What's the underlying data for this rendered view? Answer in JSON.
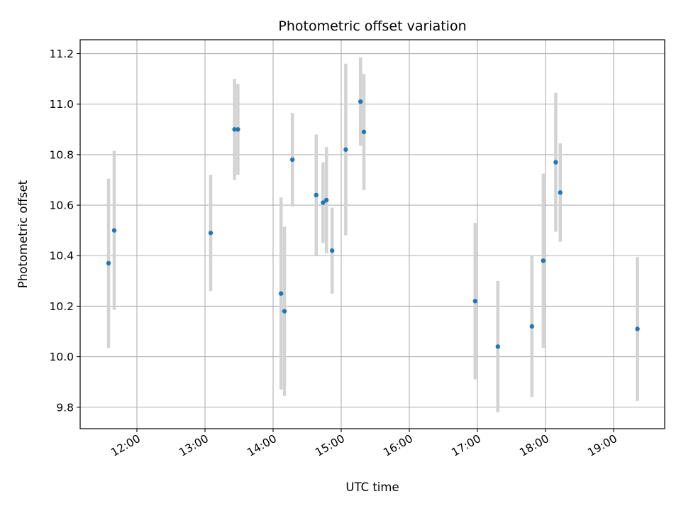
{
  "chart_data": {
    "type": "scatter",
    "title": "Photometric offset variation",
    "xlabel": "UTC time",
    "ylabel": "Photometric offset",
    "x_unit": "UTC hours",
    "xlim": [
      "11:10",
      "19:45"
    ],
    "ylim": [
      9.715,
      11.255
    ],
    "x_ticks": [
      "12:00",
      "13:00",
      "14:00",
      "15:00",
      "16:00",
      "17:00",
      "18:00",
      "19:00"
    ],
    "y_ticks": [
      "9.8",
      "10.0",
      "10.2",
      "10.4",
      "10.6",
      "10.8",
      "11.0",
      "11.2"
    ],
    "grid": true,
    "marker_color": "#1f77b4",
    "errorbar_color": "#d3d3d3",
    "points": [
      {
        "time": "11:35",
        "y": 10.37,
        "yerr": 0.335
      },
      {
        "time": "11:40",
        "y": 10.5,
        "yerr": 0.315
      },
      {
        "time": "13:05",
        "y": 10.49,
        "yerr": 0.23
      },
      {
        "time": "13:26",
        "y": 10.9,
        "yerr": 0.2
      },
      {
        "time": "13:29",
        "y": 10.9,
        "yerr": 0.18
      },
      {
        "time": "14:07",
        "y": 10.25,
        "yerr": 0.38
      },
      {
        "time": "14:10",
        "y": 10.18,
        "yerr": 0.335
      },
      {
        "time": "14:17",
        "y": 10.78,
        "yerr": 0.185
      },
      {
        "time": "14:38",
        "y": 10.64,
        "yerr": 0.24
      },
      {
        "time": "14:44",
        "y": 10.61,
        "yerr": 0.16
      },
      {
        "time": "14:47",
        "y": 10.62,
        "yerr": 0.21
      },
      {
        "time": "14:52",
        "y": 10.42,
        "yerr": 0.17
      },
      {
        "time": "15:04",
        "y": 10.82,
        "yerr": 0.34
      },
      {
        "time": "15:17",
        "y": 11.01,
        "yerr": 0.175
      },
      {
        "time": "15:20",
        "y": 10.89,
        "yerr": 0.23
      },
      {
        "time": "16:58",
        "y": 10.22,
        "yerr": 0.31
      },
      {
        "time": "17:18",
        "y": 10.04,
        "yerr": 0.26
      },
      {
        "time": "17:48",
        "y": 10.12,
        "yerr": 0.28
      },
      {
        "time": "17:58",
        "y": 10.38,
        "yerr": 0.345
      },
      {
        "time": "18:09",
        "y": 10.77,
        "yerr": 0.275
      },
      {
        "time": "18:13",
        "y": 10.65,
        "yerr": 0.195
      },
      {
        "time": "19:21",
        "y": 10.11,
        "yerr": 0.285
      }
    ]
  }
}
